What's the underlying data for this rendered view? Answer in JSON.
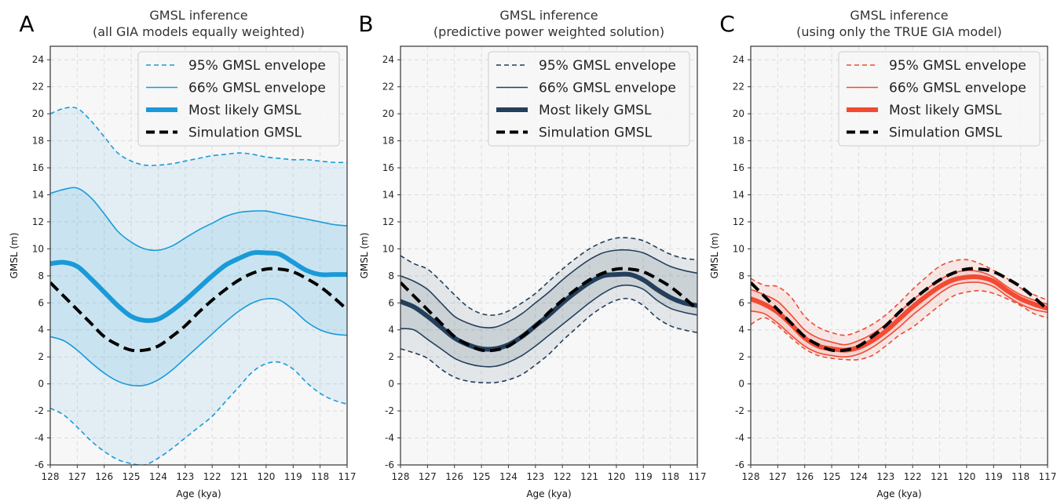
{
  "chart_data": [
    {
      "type": "line",
      "panel_letter": "A",
      "title": "GMSL inference",
      "subtitle": "(all GIA models equally weighted)",
      "xlabel": "Age (kya)",
      "ylabel": "GMSL (m)",
      "xlim": [
        128,
        117
      ],
      "ylim": [
        -6,
        25
      ],
      "x_reversed": true,
      "x_ticks": [
        128,
        127,
        126,
        125,
        124,
        123,
        122,
        121,
        120,
        119,
        118,
        117
      ],
      "y_ticks": [
        -6,
        -4,
        -2,
        0,
        2,
        4,
        6,
        8,
        10,
        12,
        14,
        16,
        18,
        20,
        22,
        24
      ],
      "grid": true,
      "legend_position": "top-right",
      "color": "#1a9ad9",
      "x": [
        128,
        127.5,
        127,
        126.5,
        126,
        125.5,
        125,
        124.5,
        124,
        123.5,
        123,
        122.5,
        122,
        121.5,
        121,
        120.5,
        120,
        119.5,
        119,
        118.5,
        118,
        117.5,
        117
      ],
      "series": [
        {
          "name": "95% GMSL envelope",
          "style": "dashed",
          "role": "upper",
          "values": [
            20.0,
            20.4,
            20.4,
            19.5,
            18.3,
            17.1,
            16.5,
            16.2,
            16.2,
            16.3,
            16.5,
            16.7,
            16.9,
            17.0,
            17.1,
            17.0,
            16.8,
            16.7,
            16.6,
            16.6,
            16.5,
            16.4,
            16.4
          ]
        },
        {
          "name": "95% GMSL envelope",
          "style": "dashed",
          "role": "lower",
          "values": [
            -1.8,
            -2.3,
            -3.2,
            -4.2,
            -5.0,
            -5.6,
            -5.9,
            -6.0,
            -5.5,
            -4.8,
            -4.0,
            -3.2,
            -2.4,
            -1.3,
            -0.2,
            0.9,
            1.5,
            1.6,
            1.1,
            0.1,
            -0.7,
            -1.2,
            -1.5
          ]
        },
        {
          "name": "66% GMSL envelope",
          "style": "solid",
          "role": "upper",
          "values": [
            14.1,
            14.4,
            14.5,
            13.8,
            12.6,
            11.3,
            10.5,
            10.0,
            9.9,
            10.2,
            10.8,
            11.4,
            11.9,
            12.4,
            12.7,
            12.8,
            12.8,
            12.6,
            12.4,
            12.2,
            12.0,
            11.8,
            11.7
          ]
        },
        {
          "name": "66% GMSL envelope",
          "style": "solid",
          "role": "lower",
          "values": [
            3.5,
            3.2,
            2.5,
            1.6,
            0.8,
            0.2,
            -0.1,
            -0.1,
            0.3,
            1.0,
            1.9,
            2.8,
            3.7,
            4.6,
            5.4,
            6.0,
            6.3,
            6.2,
            5.5,
            4.6,
            4.0,
            3.7,
            3.6
          ]
        },
        {
          "name": "Most likely GMSL",
          "style": "thick",
          "values": [
            8.9,
            9.0,
            8.7,
            7.8,
            6.8,
            5.8,
            5.0,
            4.7,
            4.8,
            5.4,
            6.2,
            7.1,
            8.0,
            8.8,
            9.3,
            9.7,
            9.7,
            9.6,
            9.0,
            8.4,
            8.1,
            8.1,
            8.1
          ]
        },
        {
          "name": "Simulation GMSL",
          "style": "black-dashed",
          "values": [
            7.5,
            6.5,
            5.5,
            4.5,
            3.5,
            2.9,
            2.5,
            2.5,
            2.8,
            3.5,
            4.3,
            5.3,
            6.2,
            7.0,
            7.7,
            8.2,
            8.5,
            8.5,
            8.3,
            7.8,
            7.2,
            6.4,
            5.5
          ]
        }
      ]
    },
    {
      "type": "line",
      "panel_letter": "B",
      "title": "GMSL inference",
      "subtitle": "(predictive power weighted solution)",
      "xlabel": "Age (kya)",
      "ylabel": "GMSL (m)",
      "xlim": [
        128,
        117
      ],
      "ylim": [
        -6,
        25
      ],
      "x_reversed": true,
      "x_ticks": [
        128,
        127,
        126,
        125,
        124,
        123,
        122,
        121,
        120,
        119,
        118,
        117
      ],
      "y_ticks": [
        -6,
        -4,
        -2,
        0,
        2,
        4,
        6,
        8,
        10,
        12,
        14,
        16,
        18,
        20,
        22,
        24
      ],
      "grid": true,
      "legend_position": "top-right",
      "color": "#243f5c",
      "x": [
        128,
        127.5,
        127,
        126.5,
        126,
        125.5,
        125,
        124.5,
        124,
        123.5,
        123,
        122.5,
        122,
        121.5,
        121,
        120.5,
        120,
        119.5,
        119,
        118.5,
        118,
        117.5,
        117
      ],
      "series": [
        {
          "name": "95% GMSL envelope",
          "style": "dashed",
          "role": "upper",
          "values": [
            9.5,
            8.9,
            8.5,
            7.6,
            6.6,
            5.7,
            5.2,
            5.1,
            5.4,
            6.0,
            6.7,
            7.6,
            8.5,
            9.3,
            10.0,
            10.5,
            10.8,
            10.8,
            10.6,
            10.1,
            9.6,
            9.3,
            9.2
          ]
        },
        {
          "name": "95% GMSL envelope",
          "style": "dashed",
          "role": "lower",
          "values": [
            2.6,
            2.3,
            1.9,
            1.1,
            0.5,
            0.2,
            0.1,
            0.1,
            0.3,
            0.7,
            1.4,
            2.2,
            3.2,
            4.1,
            5.0,
            5.7,
            6.2,
            6.3,
            5.8,
            4.9,
            4.3,
            4.0,
            3.8
          ]
        },
        {
          "name": "66% GMSL envelope",
          "style": "solid",
          "role": "upper",
          "values": [
            8.0,
            7.6,
            7.0,
            6.0,
            5.0,
            4.5,
            4.2,
            4.2,
            4.6,
            5.2,
            6.0,
            6.8,
            7.7,
            8.5,
            9.2,
            9.7,
            9.9,
            9.9,
            9.7,
            9.2,
            8.7,
            8.4,
            8.2
          ]
        },
        {
          "name": "66% GMSL envelope",
          "style": "solid",
          "role": "lower",
          "values": [
            4.1,
            4.0,
            3.3,
            2.6,
            1.9,
            1.5,
            1.3,
            1.3,
            1.6,
            2.1,
            2.8,
            3.6,
            4.4,
            5.2,
            6.0,
            6.7,
            7.2,
            7.3,
            7.0,
            6.2,
            5.6,
            5.3,
            5.1
          ]
        },
        {
          "name": "Most likely GMSL",
          "style": "thick",
          "values": [
            6.1,
            5.7,
            5.0,
            4.2,
            3.4,
            2.9,
            2.6,
            2.6,
            2.9,
            3.5,
            4.3,
            5.1,
            6.0,
            6.8,
            7.5,
            8.0,
            8.1,
            8.1,
            7.7,
            7.0,
            6.4,
            6.0,
            5.8
          ]
        },
        {
          "name": "Simulation GMSL",
          "style": "black-dashed",
          "values": [
            7.5,
            6.5,
            5.5,
            4.5,
            3.5,
            2.9,
            2.5,
            2.5,
            2.8,
            3.5,
            4.3,
            5.3,
            6.2,
            7.0,
            7.7,
            8.2,
            8.5,
            8.5,
            8.3,
            7.8,
            7.2,
            6.4,
            5.5
          ]
        }
      ]
    },
    {
      "type": "line",
      "panel_letter": "C",
      "title": "GMSL inference",
      "subtitle": "(using only the TRUE GIA model)",
      "xlabel": "Age (kya)",
      "ylabel": "GMSL (m)",
      "xlim": [
        128,
        117
      ],
      "ylim": [
        -6,
        25
      ],
      "x_reversed": true,
      "x_ticks": [
        128,
        127,
        126,
        125,
        124,
        123,
        122,
        121,
        120,
        119,
        118,
        117
      ],
      "y_ticks": [
        -6,
        -4,
        -2,
        0,
        2,
        4,
        6,
        8,
        10,
        12,
        14,
        16,
        18,
        20,
        22,
        24
      ],
      "grid": true,
      "legend_position": "top-right",
      "color": "#f24a33",
      "x": [
        128,
        127.5,
        127,
        126.5,
        126,
        125.5,
        125,
        124.5,
        124,
        123.5,
        123,
        122.5,
        122,
        121.5,
        121,
        120.5,
        120,
        119.5,
        119,
        118.5,
        118,
        117.5,
        117
      ],
      "series": [
        {
          "name": "95% GMSL envelope",
          "style": "dashed",
          "role": "upper",
          "values": [
            7.8,
            7.3,
            7.2,
            6.4,
            5.0,
            4.2,
            3.8,
            3.6,
            3.9,
            4.4,
            5.1,
            6.0,
            7.0,
            7.9,
            8.7,
            9.1,
            9.2,
            8.9,
            8.4,
            7.8,
            7.1,
            6.6,
            6.2
          ]
        },
        {
          "name": "95% GMSL envelope",
          "style": "dashed",
          "role": "lower",
          "values": [
            4.4,
            4.9,
            4.3,
            3.4,
            2.6,
            2.1,
            1.9,
            1.8,
            1.8,
            2.1,
            2.8,
            3.6,
            4.2,
            5.0,
            5.8,
            6.5,
            6.8,
            6.9,
            6.7,
            6.3,
            5.8,
            5.2,
            4.9
          ]
        },
        {
          "name": "66% GMSL envelope",
          "style": "solid",
          "role": "upper",
          "values": [
            7.0,
            6.6,
            6.1,
            5.1,
            4.0,
            3.4,
            3.1,
            2.9,
            3.2,
            3.7,
            4.4,
            5.3,
            6.2,
            7.0,
            7.7,
            8.2,
            8.4,
            8.3,
            7.9,
            7.2,
            6.6,
            6.2,
            5.9
          ]
        },
        {
          "name": "66% GMSL envelope",
          "style": "solid",
          "role": "lower",
          "values": [
            5.4,
            5.2,
            4.5,
            3.6,
            2.8,
            2.3,
            2.1,
            2.0,
            2.2,
            2.7,
            3.4,
            4.2,
            5.1,
            5.9,
            6.7,
            7.3,
            7.5,
            7.5,
            7.2,
            6.5,
            5.9,
            5.5,
            5.3
          ]
        },
        {
          "name": "Most likely GMSL",
          "style": "thick",
          "values": [
            6.3,
            5.9,
            5.3,
            4.4,
            3.4,
            2.8,
            2.6,
            2.5,
            2.7,
            3.2,
            3.9,
            4.8,
            5.7,
            6.5,
            7.2,
            7.7,
            7.9,
            7.9,
            7.6,
            6.9,
            6.3,
            5.9,
            5.6
          ]
        },
        {
          "name": "Simulation GMSL",
          "style": "black-dashed",
          "values": [
            7.5,
            6.5,
            5.5,
            4.5,
            3.5,
            2.9,
            2.5,
            2.5,
            2.8,
            3.5,
            4.3,
            5.3,
            6.2,
            7.0,
            7.7,
            8.2,
            8.5,
            8.5,
            8.3,
            7.8,
            7.2,
            6.4,
            5.5
          ]
        }
      ]
    }
  ],
  "colors": {
    "panel_A": "#1a9ad9",
    "panel_B": "#243f5c",
    "panel_C": "#f24a33",
    "simulation": "#000000",
    "plot_background": "#f7f7f7",
    "grid": "#dcdcdc"
  }
}
